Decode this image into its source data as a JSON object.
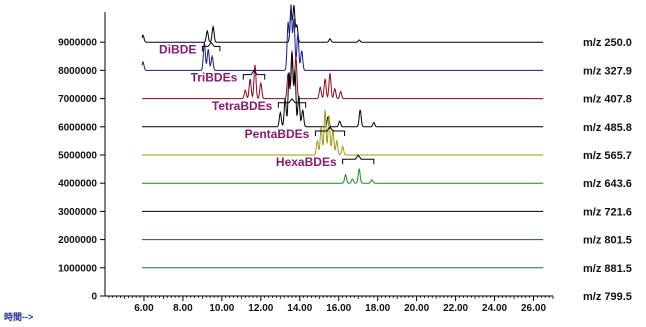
{
  "chart_data": {
    "type": "line",
    "title": "",
    "xlabel": "時間-->",
    "ylabel": "",
    "xlim": [
      4.0,
      27.0
    ],
    "ylim": [
      0,
      10000000
    ],
    "xticks": [
      "6.00",
      "8.00",
      "10.00",
      "12.00",
      "14.00",
      "16.00",
      "18.00",
      "20.00",
      "22.00",
      "24.00",
      "26.00"
    ],
    "xtick_values": [
      6,
      8,
      10,
      12,
      14,
      16,
      18,
      20,
      22,
      24,
      26
    ],
    "yticks": [
      "0",
      "1000000",
      "2000000",
      "3000000",
      "4000000",
      "5000000",
      "6000000",
      "7000000",
      "8000000",
      "9000000"
    ],
    "ytick_values": [
      0,
      1000000,
      2000000,
      3000000,
      4000000,
      5000000,
      6000000,
      7000000,
      8000000,
      9000000
    ],
    "grid": false,
    "series": [
      {
        "name": "m/z 250.0",
        "baseline": 9000000,
        "color": "#000000",
        "peaks": [
          [
            5.95,
            250000
          ],
          [
            9.25,
            400000
          ],
          [
            9.55,
            550000
          ],
          [
            13.55,
            1100000
          ],
          [
            13.7,
            1300000
          ],
          [
            13.85,
            600000
          ],
          [
            15.55,
            120000
          ],
          [
            17.05,
            80000
          ]
        ]
      },
      {
        "name": "m/z 327.9",
        "baseline": 8000000,
        "color": "#1a1a8c",
        "peaks": [
          [
            5.95,
            300000
          ],
          [
            9.1,
            1000000
          ],
          [
            9.3,
            750000
          ],
          [
            9.5,
            500000
          ],
          [
            13.4,
            1700000
          ],
          [
            13.55,
            2300000
          ],
          [
            13.7,
            1800000
          ],
          [
            13.9,
            1300000
          ],
          [
            14.1,
            700000
          ]
        ]
      },
      {
        "name": "m/z 407.8",
        "baseline": 7000000,
        "color": "#8b0a1a",
        "peaks": [
          [
            11.2,
            300000
          ],
          [
            11.45,
            700000
          ],
          [
            11.7,
            1200000
          ],
          [
            12.0,
            550000
          ],
          [
            13.4,
            900000
          ],
          [
            13.6,
            1700000
          ],
          [
            13.8,
            1500000
          ],
          [
            15.05,
            400000
          ],
          [
            15.3,
            700000
          ],
          [
            15.55,
            900000
          ],
          [
            15.8,
            350000
          ],
          [
            16.1,
            250000
          ]
        ]
      },
      {
        "name": "m/z 485.8",
        "baseline": 6000000,
        "color": "#000000",
        "peaks": [
          [
            13.0,
            500000
          ],
          [
            13.25,
            1000000
          ],
          [
            13.45,
            1900000
          ],
          [
            13.6,
            2600000
          ],
          [
            13.75,
            2000000
          ],
          [
            13.95,
            1100000
          ],
          [
            14.15,
            600000
          ],
          [
            15.45,
            350000
          ],
          [
            16.05,
            200000
          ],
          [
            17.1,
            600000
          ],
          [
            17.8,
            150000
          ]
        ]
      },
      {
        "name": "m/z 565.7",
        "baseline": 5000000,
        "color": "#a09a10",
        "peaks": [
          [
            14.9,
            500000
          ],
          [
            15.1,
            1000000
          ],
          [
            15.3,
            1600000
          ],
          [
            15.5,
            1400000
          ],
          [
            15.7,
            900000
          ],
          [
            15.9,
            500000
          ],
          [
            16.2,
            300000
          ]
        ]
      },
      {
        "name": "m/z 643.6",
        "baseline": 4000000,
        "color": "#1a8c1a",
        "peaks": [
          [
            16.35,
            300000
          ],
          [
            16.7,
            150000
          ],
          [
            17.05,
            500000
          ],
          [
            17.7,
            120000
          ]
        ]
      },
      {
        "name": "m/z 721.6",
        "baseline": 3000000,
        "color": "#000000",
        "peaks": []
      },
      {
        "name": "m/z 801.5",
        "baseline": 2000000,
        "color": "#1a4a8c",
        "peaks": []
      },
      {
        "name": "m/z 881.5",
        "baseline": 1000000,
        "color": "#1a6a6a",
        "peaks": []
      },
      {
        "name": "m/z 799.5",
        "baseline": 0,
        "color": "#000000",
        "peaks": []
      }
    ],
    "annotations": [
      {
        "text": "DiBDE",
        "color": "#8b1a6e",
        "brace_x": [
          9.0,
          9.9
        ],
        "baseline": 8000000
      },
      {
        "text": "TriBDEs",
        "color": "#8b1a6e",
        "brace_x": [
          11.1,
          12.2
        ],
        "baseline": 7000000
      },
      {
        "text": "TetraBDEs",
        "color": "#8b1a6e",
        "brace_x": [
          12.9,
          14.3
        ],
        "baseline": 6000000
      },
      {
        "text": "PentaBDEs",
        "color": "#8b1a6e",
        "brace_x": [
          14.8,
          16.3
        ],
        "baseline": 5000000
      },
      {
        "text": "HexaBDEs",
        "color": "#8b1a6e",
        "brace_x": [
          16.2,
          17.8
        ],
        "baseline": 4000000
      }
    ]
  }
}
